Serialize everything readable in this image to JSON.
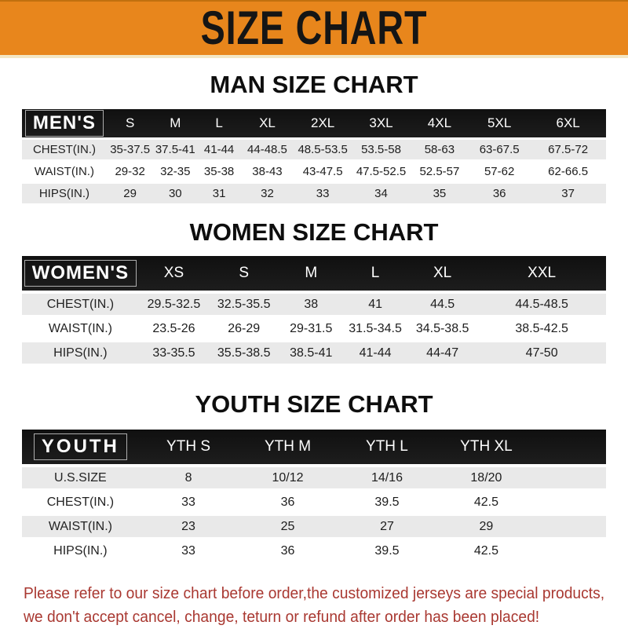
{
  "colors": {
    "banner_bg": "#E8861C",
    "banner_text": "#151515",
    "table_header_bg": "#161616",
    "row_gray": "#E9E9E9",
    "footer_red": "#A93831"
  },
  "banner": {
    "title": "SIZE CHART"
  },
  "sections": [
    {
      "id": "mens",
      "heading": "MAN SIZE CHART",
      "label": "MEN'S",
      "columns": [
        "S",
        "M",
        "L",
        "XL",
        "2XL",
        "3XL",
        "4XL",
        "5XL",
        "6XL"
      ],
      "rows": [
        {
          "label": "CHEST(IN.)",
          "values": [
            "35-37.5",
            "37.5-41",
            "41-44",
            "44-48.5",
            "48.5-53.5",
            "53.5-58",
            "58-63",
            "63-67.5",
            "67.5-72"
          ]
        },
        {
          "label": "WAIST(IN.)",
          "values": [
            "29-32",
            "32-35",
            "35-38",
            "38-43",
            "43-47.5",
            "47.5-52.5",
            "52.5-57",
            "57-62",
            "62-66.5"
          ]
        },
        {
          "label": "HIPS(IN.)",
          "values": [
            "29",
            "30",
            "31",
            "32",
            "33",
            "34",
            "35",
            "36",
            "37"
          ]
        }
      ]
    },
    {
      "id": "womens",
      "heading": "WOMEN SIZE CHART",
      "label": "WOMEN'S",
      "columns": [
        "XS",
        "S",
        "M",
        "L",
        "XL",
        "XXL"
      ],
      "rows": [
        {
          "label": "CHEST(IN.)",
          "values": [
            "29.5-32.5",
            "32.5-35.5",
            "38",
            "41",
            "44.5",
            "44.5-48.5"
          ]
        },
        {
          "label": "WAIST(IN.)",
          "values": [
            "23.5-26",
            "26-29",
            "29-31.5",
            "31.5-34.5",
            "34.5-38.5",
            "38.5-42.5"
          ]
        },
        {
          "label": "HIPS(IN.)",
          "values": [
            "33-35.5",
            "35.5-38.5",
            "38.5-41",
            "41-44",
            "44-47",
            "47-50"
          ]
        }
      ]
    },
    {
      "id": "youth",
      "heading": "YOUTH SIZE CHART",
      "label": "YOUTH",
      "columns": [
        "YTH S",
        "YTH M",
        "YTH L",
        "YTH XL"
      ],
      "rows": [
        {
          "label": "U.S.SIZE",
          "values": [
            "8",
            "10/12",
            "14/16",
            "18/20"
          ]
        },
        {
          "label": "CHEST(IN.)",
          "values": [
            "33",
            "36",
            "39.5",
            "42.5"
          ]
        },
        {
          "label": "WAIST(IN.)",
          "values": [
            "23",
            "25",
            "27",
            "29"
          ]
        },
        {
          "label": "HIPS(IN.)",
          "values": [
            "33",
            "36",
            "39.5",
            "42.5"
          ]
        }
      ]
    }
  ],
  "footer": {
    "line1": "Please refer to our size chart before order,the customized jerseys are special products,",
    "line2": "we don't accept cancel, change, teturn or refund after order has been placed!"
  }
}
